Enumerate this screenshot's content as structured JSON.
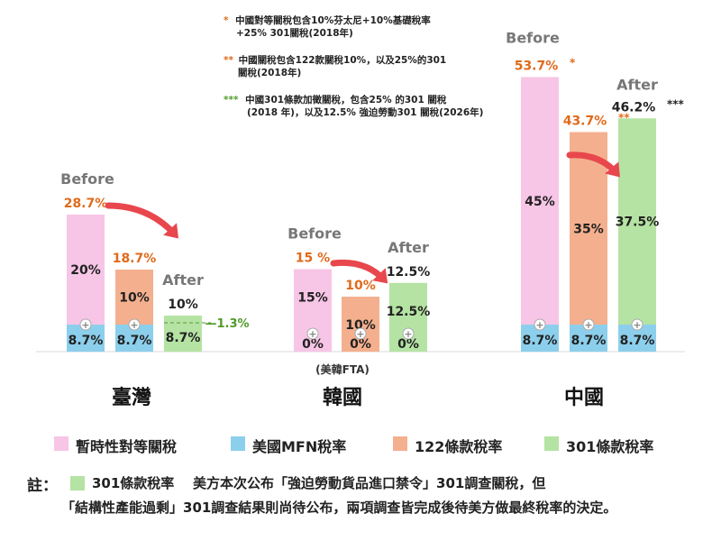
{
  "colors": {
    "reciprocal": "#f7c5e6",
    "mfn": "#8ccfec",
    "s122": "#f4b08e",
    "s301": "#b5e3a3",
    "orange_text": "#e06a1a",
    "green_text": "#4f9a28",
    "gray_text": "#777777",
    "arrow": "#e8474d"
  },
  "footnotes": [
    {
      "mark": "*",
      "color": "#e06a1a",
      "lines": [
        "中國對等關稅包含10%芬太尼+10%基礎稅率",
        "+25% 301關稅(2018年)"
      ]
    },
    {
      "mark": "**",
      "color": "#e06a1a",
      "lines": [
        "中國關稅包含122款關稅10%，以及25%的301",
        "關稅(2018年)"
      ]
    },
    {
      "mark": "***",
      "color": "#4f9a28",
      "lines": [
        "中國301條款加徵關稅，包含25% 的301 關稅",
        "(2018 年)，以及12.5% 強迫勞動301 關稅(2026年)"
      ]
    }
  ],
  "legend": [
    {
      "label": "暫時性對等關稅",
      "color_key": "reciprocal"
    },
    {
      "label": "美國MFN稅率",
      "color_key": "mfn"
    },
    {
      "label": "122條款稅率",
      "color_key": "s122"
    },
    {
      "label": "301條款稅率",
      "color_key": "s301"
    }
  ],
  "note": {
    "prefix": "註：",
    "legend_label": "301條款稅率",
    "line1": "美方本次公布「強迫勞動貨品進口禁令」301調查關稅，但",
    "line2": "「結構性產能過剩」301調查結果則尚待公布，兩項調查皆完成後待美方做最終稅率的決定。"
  },
  "chart_data": {
    "type": "bar",
    "ylim": [
      0,
      55
    ],
    "groups": [
      {
        "name": "臺灣",
        "sublabel": "",
        "before_label": "Before",
        "after_label": "After",
        "bars": [
          {
            "stage": "before",
            "segments": [
              {
                "key": "mfn",
                "value": 8.7,
                "label": "8.7%"
              },
              {
                "key": "reciprocal",
                "value": 20,
                "label": "20%"
              }
            ],
            "total_label": "28.7%",
            "total_color": "orange_text",
            "mark": ""
          },
          {
            "stage": "mid",
            "segments": [
              {
                "key": "mfn",
                "value": 8.7,
                "label": "8.7%"
              },
              {
                "key": "s122",
                "value": 10,
                "label": "10%"
              }
            ],
            "total_label": "18.7%",
            "total_color": "orange_text",
            "mark": ""
          },
          {
            "stage": "after",
            "segments": [
              {
                "key": "s301",
                "value": 8.7,
                "label": "8.7%"
              }
            ],
            "total_label": "10%",
            "total_color": "black",
            "mark": "",
            "dashed_at": 10,
            "side_label": "1.3%",
            "side_color": "green_text"
          }
        ]
      },
      {
        "name": "韓國",
        "sublabel": "(美韓FTA)",
        "before_label": "Before",
        "after_label": "After",
        "bars": [
          {
            "stage": "before",
            "segments": [
              {
                "key": "mfn",
                "value": 0,
                "label": "0%"
              },
              {
                "key": "reciprocal",
                "value": 15,
                "label": "15%"
              }
            ],
            "total_label": "15 %",
            "total_color": "orange_text",
            "mark": ""
          },
          {
            "stage": "mid",
            "segments": [
              {
                "key": "mfn",
                "value": 0,
                "label": "0%"
              },
              {
                "key": "s122",
                "value": 10,
                "label": "10%"
              }
            ],
            "total_label": "10%",
            "total_color": "orange_text",
            "mark": ""
          },
          {
            "stage": "after",
            "segments": [
              {
                "key": "mfn",
                "value": 0,
                "label": "0%"
              },
              {
                "key": "s301",
                "value": 12.5,
                "label": "12.5%"
              }
            ],
            "total_label": "12.5%",
            "total_color": "black",
            "mark": ""
          }
        ]
      },
      {
        "name": "中國",
        "sublabel": "",
        "before_label": "Before",
        "after_label": "After",
        "bars": [
          {
            "stage": "before",
            "segments": [
              {
                "key": "mfn",
                "value": 8.7,
                "label": "8.7%"
              },
              {
                "key": "reciprocal",
                "value": 45,
                "label": "45%"
              }
            ],
            "total_label": "53.7%",
            "total_color": "orange_text",
            "mark": "*"
          },
          {
            "stage": "mid",
            "segments": [
              {
                "key": "mfn",
                "value": 8.7,
                "label": "8.7%"
              },
              {
                "key": "s122",
                "value": 35,
                "label": "35%"
              }
            ],
            "total_label": "43.7%",
            "total_color": "orange_text",
            "mark": "**"
          },
          {
            "stage": "after",
            "segments": [
              {
                "key": "mfn",
                "value": 8.7,
                "label": "8.7%"
              },
              {
                "key": "s301",
                "value": 37.5,
                "label": "37.5%"
              }
            ],
            "total_label": "46.2%",
            "total_color": "black",
            "mark": "***"
          }
        ]
      }
    ]
  }
}
